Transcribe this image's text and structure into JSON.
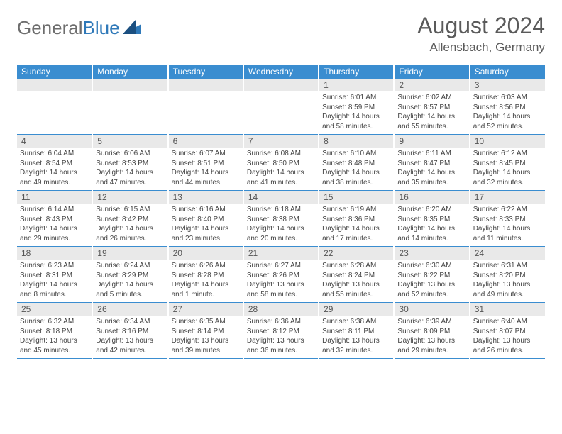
{
  "logo": {
    "text_a": "General",
    "text_b": "Blue"
  },
  "title": {
    "month": "August 2024",
    "location": "Allensbach, Germany"
  },
  "colors": {
    "header_bg": "#3a8dd0",
    "daynum_bg": "#e9e9e9",
    "rule": "#3a8dd0"
  },
  "weekdays": [
    "Sunday",
    "Monday",
    "Tuesday",
    "Wednesday",
    "Thursday",
    "Friday",
    "Saturday"
  ],
  "weeks": [
    [
      {
        "n": "",
        "sr": "",
        "ss": "",
        "dl": ""
      },
      {
        "n": "",
        "sr": "",
        "ss": "",
        "dl": ""
      },
      {
        "n": "",
        "sr": "",
        "ss": "",
        "dl": ""
      },
      {
        "n": "",
        "sr": "",
        "ss": "",
        "dl": ""
      },
      {
        "n": "1",
        "sr": "Sunrise: 6:01 AM",
        "ss": "Sunset: 8:59 PM",
        "dl": "Daylight: 14 hours and 58 minutes."
      },
      {
        "n": "2",
        "sr": "Sunrise: 6:02 AM",
        "ss": "Sunset: 8:57 PM",
        "dl": "Daylight: 14 hours and 55 minutes."
      },
      {
        "n": "3",
        "sr": "Sunrise: 6:03 AM",
        "ss": "Sunset: 8:56 PM",
        "dl": "Daylight: 14 hours and 52 minutes."
      }
    ],
    [
      {
        "n": "4",
        "sr": "Sunrise: 6:04 AM",
        "ss": "Sunset: 8:54 PM",
        "dl": "Daylight: 14 hours and 49 minutes."
      },
      {
        "n": "5",
        "sr": "Sunrise: 6:06 AM",
        "ss": "Sunset: 8:53 PM",
        "dl": "Daylight: 14 hours and 47 minutes."
      },
      {
        "n": "6",
        "sr": "Sunrise: 6:07 AM",
        "ss": "Sunset: 8:51 PM",
        "dl": "Daylight: 14 hours and 44 minutes."
      },
      {
        "n": "7",
        "sr": "Sunrise: 6:08 AM",
        "ss": "Sunset: 8:50 PM",
        "dl": "Daylight: 14 hours and 41 minutes."
      },
      {
        "n": "8",
        "sr": "Sunrise: 6:10 AM",
        "ss": "Sunset: 8:48 PM",
        "dl": "Daylight: 14 hours and 38 minutes."
      },
      {
        "n": "9",
        "sr": "Sunrise: 6:11 AM",
        "ss": "Sunset: 8:47 PM",
        "dl": "Daylight: 14 hours and 35 minutes."
      },
      {
        "n": "10",
        "sr": "Sunrise: 6:12 AM",
        "ss": "Sunset: 8:45 PM",
        "dl": "Daylight: 14 hours and 32 minutes."
      }
    ],
    [
      {
        "n": "11",
        "sr": "Sunrise: 6:14 AM",
        "ss": "Sunset: 8:43 PM",
        "dl": "Daylight: 14 hours and 29 minutes."
      },
      {
        "n": "12",
        "sr": "Sunrise: 6:15 AM",
        "ss": "Sunset: 8:42 PM",
        "dl": "Daylight: 14 hours and 26 minutes."
      },
      {
        "n": "13",
        "sr": "Sunrise: 6:16 AM",
        "ss": "Sunset: 8:40 PM",
        "dl": "Daylight: 14 hours and 23 minutes."
      },
      {
        "n": "14",
        "sr": "Sunrise: 6:18 AM",
        "ss": "Sunset: 8:38 PM",
        "dl": "Daylight: 14 hours and 20 minutes."
      },
      {
        "n": "15",
        "sr": "Sunrise: 6:19 AM",
        "ss": "Sunset: 8:36 PM",
        "dl": "Daylight: 14 hours and 17 minutes."
      },
      {
        "n": "16",
        "sr": "Sunrise: 6:20 AM",
        "ss": "Sunset: 8:35 PM",
        "dl": "Daylight: 14 hours and 14 minutes."
      },
      {
        "n": "17",
        "sr": "Sunrise: 6:22 AM",
        "ss": "Sunset: 8:33 PM",
        "dl": "Daylight: 14 hours and 11 minutes."
      }
    ],
    [
      {
        "n": "18",
        "sr": "Sunrise: 6:23 AM",
        "ss": "Sunset: 8:31 PM",
        "dl": "Daylight: 14 hours and 8 minutes."
      },
      {
        "n": "19",
        "sr": "Sunrise: 6:24 AM",
        "ss": "Sunset: 8:29 PM",
        "dl": "Daylight: 14 hours and 5 minutes."
      },
      {
        "n": "20",
        "sr": "Sunrise: 6:26 AM",
        "ss": "Sunset: 8:28 PM",
        "dl": "Daylight: 14 hours and 1 minute."
      },
      {
        "n": "21",
        "sr": "Sunrise: 6:27 AM",
        "ss": "Sunset: 8:26 PM",
        "dl": "Daylight: 13 hours and 58 minutes."
      },
      {
        "n": "22",
        "sr": "Sunrise: 6:28 AM",
        "ss": "Sunset: 8:24 PM",
        "dl": "Daylight: 13 hours and 55 minutes."
      },
      {
        "n": "23",
        "sr": "Sunrise: 6:30 AM",
        "ss": "Sunset: 8:22 PM",
        "dl": "Daylight: 13 hours and 52 minutes."
      },
      {
        "n": "24",
        "sr": "Sunrise: 6:31 AM",
        "ss": "Sunset: 8:20 PM",
        "dl": "Daylight: 13 hours and 49 minutes."
      }
    ],
    [
      {
        "n": "25",
        "sr": "Sunrise: 6:32 AM",
        "ss": "Sunset: 8:18 PM",
        "dl": "Daylight: 13 hours and 45 minutes."
      },
      {
        "n": "26",
        "sr": "Sunrise: 6:34 AM",
        "ss": "Sunset: 8:16 PM",
        "dl": "Daylight: 13 hours and 42 minutes."
      },
      {
        "n": "27",
        "sr": "Sunrise: 6:35 AM",
        "ss": "Sunset: 8:14 PM",
        "dl": "Daylight: 13 hours and 39 minutes."
      },
      {
        "n": "28",
        "sr": "Sunrise: 6:36 AM",
        "ss": "Sunset: 8:12 PM",
        "dl": "Daylight: 13 hours and 36 minutes."
      },
      {
        "n": "29",
        "sr": "Sunrise: 6:38 AM",
        "ss": "Sunset: 8:11 PM",
        "dl": "Daylight: 13 hours and 32 minutes."
      },
      {
        "n": "30",
        "sr": "Sunrise: 6:39 AM",
        "ss": "Sunset: 8:09 PM",
        "dl": "Daylight: 13 hours and 29 minutes."
      },
      {
        "n": "31",
        "sr": "Sunrise: 6:40 AM",
        "ss": "Sunset: 8:07 PM",
        "dl": "Daylight: 13 hours and 26 minutes."
      }
    ]
  ]
}
